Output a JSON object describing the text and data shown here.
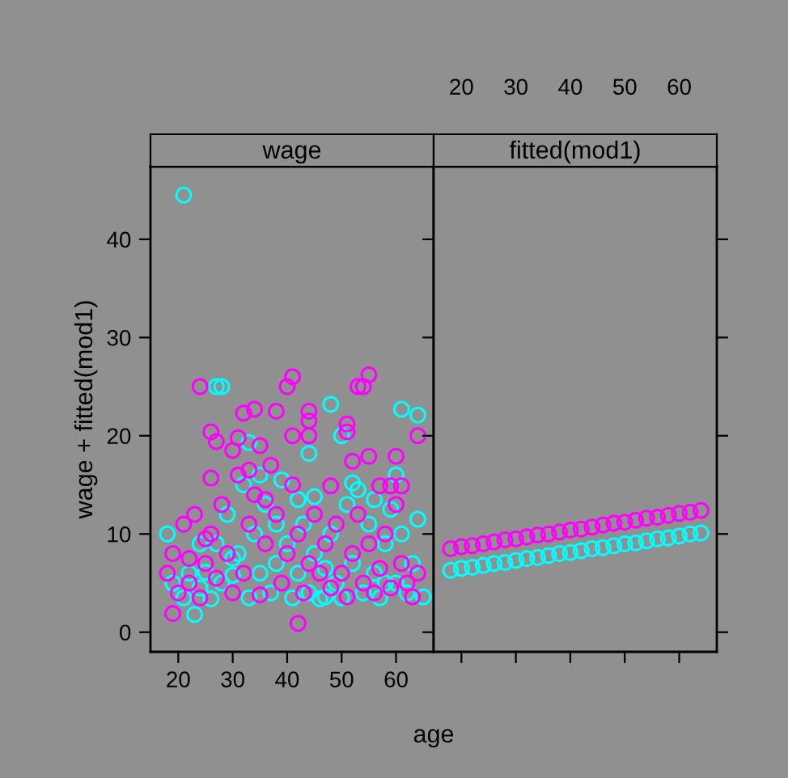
{
  "chart_data": [
    {
      "type": "scatter",
      "title": "wage",
      "xlabel": "age",
      "ylabel": "wage + fitted(mod1)",
      "xlim": [
        14.9,
        66.9
      ],
      "xticks": [
        20,
        30,
        40,
        50,
        60
      ],
      "ylim": [
        -2.0,
        47.4
      ],
      "yticks": [
        0,
        10,
        20,
        30,
        40
      ],
      "marker": "circle",
      "grid": false,
      "legend": false,
      "series": [
        {
          "color": "#00ffff",
          "x": [
            21,
            27,
            28,
            48,
            61,
            64,
            50,
            33,
            44,
            18,
            19,
            20,
            21,
            22,
            23,
            24,
            25,
            26,
            27,
            28,
            29,
            30,
            31,
            32,
            33,
            34,
            35,
            36,
            37,
            38,
            39,
            40,
            41,
            42,
            43,
            44,
            45,
            46,
            47,
            48,
            49,
            50,
            51,
            52,
            53,
            54,
            55,
            56,
            57,
            58,
            59,
            60,
            61,
            62,
            63,
            64,
            65,
            35,
            45,
            52,
            60,
            30,
            38,
            58,
            42,
            24,
            47,
            56
          ],
          "values": [
            44.5,
            25,
            25,
            23.2,
            22.7,
            22.1,
            20,
            19.3,
            18.2,
            10,
            5,
            4,
            3.5,
            6,
            1.8,
            4.5,
            6.1,
            3.4,
            9,
            5,
            12,
            5.8,
            8,
            15,
            3.5,
            10,
            6,
            13,
            4,
            7,
            15.5,
            9,
            3.5,
            6,
            11,
            4,
            8,
            3.4,
            6.5,
            10,
            5,
            3.5,
            13,
            7,
            14.5,
            4,
            11,
            6,
            3.5,
            9,
            12.5,
            5,
            10,
            4,
            7,
            11.5,
            3.6,
            16,
            13.8,
            15.2,
            16,
            7.5,
            11,
            5,
            13.5,
            9,
            3.6,
            13.5
          ]
        },
        {
          "color": "#ff00ff",
          "x": [
            19,
            24,
            41,
            40,
            55,
            53,
            54,
            32,
            34,
            38,
            44,
            44,
            26,
            27,
            31,
            41,
            44,
            51,
            51,
            64,
            55,
            60,
            52,
            26,
            48,
            57,
            59,
            61,
            42,
            18,
            19,
            20,
            21,
            22,
            23,
            24,
            25,
            26,
            27,
            28,
            29,
            30,
            31,
            32,
            33,
            34,
            35,
            36,
            37,
            38,
            39,
            40,
            41,
            42,
            43,
            44,
            45,
            46,
            47,
            48,
            49,
            50,
            51,
            52,
            53,
            54,
            55,
            56,
            57,
            58,
            59,
            60,
            61,
            62,
            63,
            64,
            30,
            35,
            33,
            25,
            22,
            36
          ],
          "values": [
            1.9,
            25,
            26,
            25,
            26.2,
            25,
            25,
            22.3,
            22.7,
            22.5,
            22.5,
            21.5,
            20.4,
            19.4,
            19.8,
            20,
            20,
            21.2,
            20.4,
            20,
            17.9,
            17.9,
            17.4,
            15.7,
            14.9,
            14.9,
            14.9,
            14.9,
            0.9,
            6,
            8,
            4,
            11,
            5,
            12,
            3.5,
            7,
            10,
            5.5,
            13,
            8,
            4,
            16,
            6,
            11,
            14,
            3.8,
            9,
            17,
            12,
            5,
            8,
            15,
            10,
            4,
            7,
            12,
            6,
            9,
            4.5,
            11,
            6,
            3.6,
            8,
            12,
            5,
            9,
            4,
            6.5,
            10,
            4.5,
            13,
            7,
            5,
            3.6,
            6,
            18.5,
            19,
            16.5,
            9.5,
            7.5,
            13.5
          ]
        }
      ]
    },
    {
      "type": "scatter",
      "title": "fitted(mod1)",
      "xlim": [
        14.9,
        66.9
      ],
      "xticks": [
        20,
        30,
        40,
        50,
        60
      ],
      "ylim": [
        -2.0,
        47.4
      ],
      "yticks": [
        0,
        10,
        20,
        30,
        40
      ],
      "marker": "circle",
      "grid": false,
      "legend": false,
      "tick_labels": "x",
      "series": [
        {
          "color": "#00ffff",
          "x": [
            18,
            20,
            22,
            24,
            26,
            28,
            30,
            32,
            34,
            36,
            38,
            40,
            42,
            44,
            46,
            48,
            50,
            52,
            54,
            56,
            58,
            60,
            62,
            64
          ],
          "values": [
            6.3,
            6.5,
            6.6,
            6.8,
            7.0,
            7.1,
            7.3,
            7.5,
            7.6,
            7.8,
            8.0,
            8.1,
            8.3,
            8.5,
            8.6,
            8.8,
            9.0,
            9.1,
            9.3,
            9.5,
            9.6,
            9.8,
            10.0,
            10.1
          ]
        },
        {
          "color": "#ff00ff",
          "x": [
            18,
            20,
            22,
            24,
            26,
            28,
            30,
            32,
            34,
            36,
            38,
            40,
            42,
            44,
            46,
            48,
            50,
            52,
            54,
            56,
            58,
            60,
            62,
            64
          ],
          "values": [
            8.5,
            8.7,
            8.8,
            9.0,
            9.2,
            9.4,
            9.5,
            9.7,
            9.9,
            10.0,
            10.2,
            10.4,
            10.5,
            10.7,
            10.9,
            11.1,
            11.2,
            11.4,
            11.6,
            11.7,
            11.9,
            12.1,
            12.2,
            12.4
          ]
        }
      ]
    }
  ]
}
